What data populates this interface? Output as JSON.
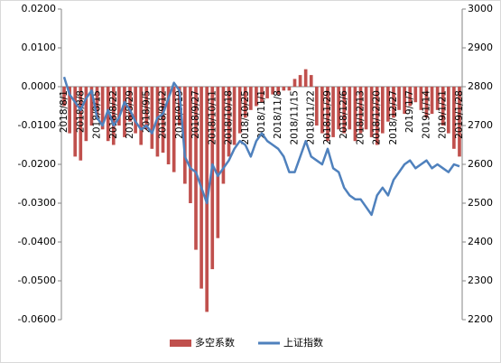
{
  "chart_data": {
    "type": "bar-line",
    "categories": [
      "2018/8/1",
      null,
      null,
      "2018/8/8",
      null,
      null,
      "2018/8/15",
      null,
      null,
      "2018/8/22",
      null,
      null,
      "2018/8/29",
      null,
      null,
      "2018/9/5",
      null,
      null,
      "2018/9/12",
      null,
      null,
      "2018/9/19",
      null,
      null,
      "2018/9/27",
      null,
      null,
      "2018/10/11",
      null,
      null,
      "2018/10/18",
      null,
      null,
      "2018/10/25",
      null,
      null,
      "2018/11/1",
      null,
      null,
      "2018/11/8",
      null,
      null,
      "2018/11/15",
      null,
      null,
      "2018/11/22",
      null,
      null,
      "2018/11/29",
      null,
      null,
      "2018/12/6",
      null,
      null,
      "2018/12/13",
      null,
      null,
      "2018/12/20",
      null,
      null,
      "2018/12/27",
      null,
      null,
      "2019/1/7",
      null,
      null,
      "2019/1/14",
      null,
      null,
      "2019/1/21",
      null,
      null,
      "2019/1/28"
    ],
    "series": [
      {
        "name": "多空系数",
        "type": "bar",
        "color": "#c0504d",
        "axis": "y",
        "values": [
          -0.005,
          -0.012,
          -0.018,
          -0.019,
          -0.014,
          -0.01,
          -0.008,
          -0.011,
          -0.014,
          -0.015,
          -0.01,
          -0.013,
          -0.009,
          -0.012,
          -0.015,
          -0.011,
          -0.016,
          -0.018,
          -0.017,
          -0.02,
          -0.022,
          -0.01,
          -0.025,
          -0.03,
          -0.042,
          -0.052,
          -0.058,
          -0.047,
          -0.039,
          -0.025,
          -0.018,
          -0.015,
          -0.012,
          -0.008,
          -0.006,
          -0.005,
          -0.004,
          -0.003,
          -0.002,
          -0.002,
          -0.001,
          -0.001,
          0.002,
          0.003,
          0.0045,
          0.003,
          -0.01,
          -0.012,
          -0.014,
          -0.013,
          -0.011,
          -0.012,
          -0.011,
          -0.014,
          -0.012,
          -0.011,
          -0.013,
          -0.015,
          -0.012,
          -0.009,
          -0.008,
          -0.006,
          -0.007,
          -0.005,
          -0.004,
          -0.006,
          -0.008,
          -0.007,
          -0.006,
          -0.01,
          -0.012,
          -0.016,
          -0.018
        ]
      },
      {
        "name": "上证指数",
        "type": "line",
        "color": "#4f81bd",
        "axis": "y2",
        "values": [
          2825,
          2780,
          2760,
          2740,
          2770,
          2790,
          2720,
          2700,
          2740,
          2700,
          2720,
          2760,
          2740,
          2710,
          2690,
          2700,
          2680,
          2720,
          2730,
          2770,
          2810,
          2790,
          2620,
          2590,
          2580,
          2540,
          2500,
          2600,
          2570,
          2590,
          2610,
          2640,
          2660,
          2650,
          2620,
          2660,
          2680,
          2660,
          2650,
          2640,
          2620,
          2580,
          2580,
          2620,
          2660,
          2620,
          2610,
          2600,
          2640,
          2590,
          2580,
          2540,
          2520,
          2510,
          2510,
          2490,
          2470,
          2520,
          2540,
          2520,
          2560,
          2580,
          2600,
          2610,
          2590,
          2600,
          2610,
          2590,
          2600,
          2590,
          2580,
          2600,
          2595
        ]
      }
    ],
    "ylim": [
      -0.06,
      0.02
    ],
    "yticks": [
      {
        "value": -0.06,
        "label": "-0.0600"
      },
      {
        "value": -0.05,
        "label": "-0.0500"
      },
      {
        "value": -0.04,
        "label": "-0.0400"
      },
      {
        "value": -0.03,
        "label": "-0.0300"
      },
      {
        "value": -0.02,
        "label": "-0.0200"
      },
      {
        "value": -0.01,
        "label": "-0.0100"
      },
      {
        "value": 0,
        "label": "0.0000"
      },
      {
        "value": 0.01,
        "label": "0.0100"
      },
      {
        "value": 0.02,
        "label": "0.0200"
      }
    ],
    "y2lim": [
      2200,
      3000
    ],
    "y2ticks": [
      2200,
      2300,
      2400,
      2500,
      2600,
      2700,
      2800,
      2900,
      3000
    ],
    "grid": false,
    "legend": "bottom"
  }
}
